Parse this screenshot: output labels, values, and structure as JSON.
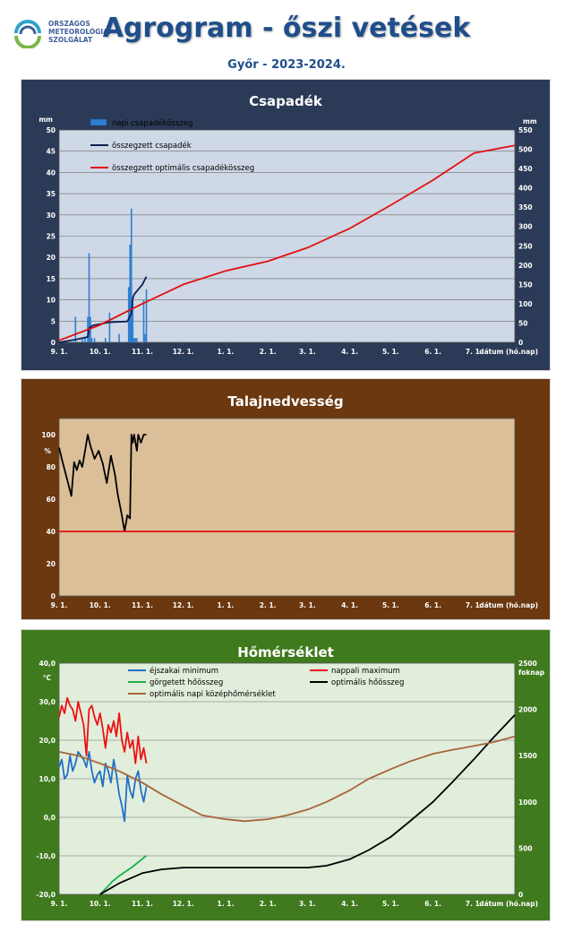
{
  "header": {
    "logo_lines": [
      "ORSZÁGOS",
      "METEOROLÓGIAI",
      "SZOLGÁLAT"
    ],
    "title": "Agrogram - őszi vetések",
    "subtitle": "Győr - 2023-2024."
  },
  "colors": {
    "precip_panel": "#2b3a56",
    "soil_panel": "#6b3810",
    "temp_panel": "#3f7a1e",
    "precip_plot": "#cfd8e6",
    "soil_plot": "#dbbf99",
    "temp_plot": "#e1eedb"
  },
  "x_axis": {
    "tick_labels": [
      "9. 1.",
      "10. 1.",
      "11. 1.",
      "12. 1.",
      "1. 1.",
      "2. 1.",
      "3. 1.",
      "4. 1.",
      "5. 1.",
      "6. 1.",
      "7. 1."
    ],
    "label": "dátum (hó.nap)"
  },
  "chart_data": [
    {
      "type": "bar",
      "title": "Csapadék",
      "x_domain": [
        "09-01",
        "07-31"
      ],
      "y_left": {
        "unit": "mm",
        "range": [
          0,
          50
        ],
        "ticks": [
          0,
          5,
          10,
          15,
          20,
          25,
          30,
          35,
          40,
          45,
          50
        ]
      },
      "y_right": {
        "unit": "mm",
        "range": [
          0,
          550
        ],
        "ticks": [
          0,
          50,
          100,
          150,
          200,
          250,
          300,
          350,
          400,
          450,
          500,
          550
        ]
      },
      "legend": [
        "napi csapadékösszeg",
        "összegzett csapadék",
        "összegzett optimális  csapadékösszeg"
      ],
      "series": [
        {
          "name": "napi csapadékösszeg",
          "axis": "left",
          "color": "#2f7fd0",
          "x": [
            "09-13",
            "09-18",
            "09-20",
            "09-22",
            "09-23",
            "09-24",
            "09-25",
            "09-27",
            "10-05",
            "10-08",
            "10-15",
            "10-22",
            "10-23",
            "10-24",
            "10-25",
            "10-26",
            "10-27",
            "10-28",
            "11-02",
            "11-03",
            "11-04"
          ],
          "values": [
            6,
            1,
            1,
            6,
            21,
            6,
            1,
            1,
            1,
            7,
            2,
            13,
            23,
            31.5,
            9,
            1,
            1,
            1,
            10,
            2,
            12.5
          ]
        },
        {
          "name": "összegzett csapadék",
          "axis": "right",
          "color": "#0d1f55",
          "x": [
            "09-01",
            "09-13",
            "09-22",
            "09-23",
            "09-26",
            "10-08",
            "10-21",
            "10-24",
            "10-25",
            "10-26",
            "11-01",
            "11-04"
          ],
          "values": [
            0,
            7,
            14,
            37,
            44,
            52,
            54,
            75,
            114,
            124,
            150,
            170
          ]
        },
        {
          "name": "összegzett optimális  csapadékösszeg",
          "axis": "right",
          "color": "#e01010",
          "x": [
            "09-01",
            "10-01",
            "11-01",
            "12-01",
            "01-01",
            "02-01",
            "03-01",
            "04-01",
            "05-01",
            "06-01",
            "07-01",
            "07-31"
          ],
          "values": [
            5,
            45,
            100,
            150,
            185,
            210,
            245,
            295,
            355,
            420,
            490,
            510
          ]
        }
      ]
    },
    {
      "type": "line",
      "title": "Talajnedvesség",
      "x_domain": [
        "09-01",
        "07-31"
      ],
      "y_left": {
        "unit": "%",
        "range": [
          0,
          110
        ],
        "ticks": [
          0,
          20,
          40,
          60,
          80,
          100
        ]
      },
      "series": [
        {
          "name": "",
          "color": "#000000",
          "x": [
            "09-01",
            "09-03",
            "09-07",
            "09-10",
            "09-12",
            "09-14",
            "09-16",
            "09-18",
            "09-20",
            "09-22",
            "09-24",
            "09-27",
            "09-30",
            "10-03",
            "10-06",
            "10-09",
            "10-12",
            "10-14",
            "10-17",
            "10-19",
            "10-20",
            "10-21",
            "10-23",
            "10-24",
            "10-25",
            "10-26",
            "10-27",
            "10-28",
            "10-29",
            "10-31",
            "11-02",
            "11-04"
          ],
          "values": [
            92,
            85,
            72,
            62,
            83,
            78,
            84,
            80,
            90,
            100,
            93,
            85,
            90,
            82,
            70,
            87,
            75,
            63,
            50,
            40,
            45,
            50,
            48,
            100,
            95,
            100,
            95,
            90,
            100,
            95,
            100,
            100
          ]
        },
        {
          "name": "",
          "color": "#e01010",
          "x": [
            "09-01",
            "07-31"
          ],
          "values": [
            40,
            40
          ]
        }
      ]
    },
    {
      "type": "line",
      "title": "Hőmérséklet",
      "x_domain": [
        "09-01",
        "07-31"
      ],
      "y_left": {
        "unit": "°C",
        "range": [
          -20,
          40
        ],
        "ticks": [
          "-20,0",
          "-10,0",
          "0,0",
          "10,0",
          "20,0",
          "30,0",
          "40,0"
        ]
      },
      "y_right": {
        "unit": "foknap",
        "range": [
          0,
          2500
        ],
        "ticks": [
          0,
          500,
          1000,
          1500,
          2000,
          2500
        ]
      },
      "legend": [
        "éjszakai minimum",
        "nappali maximum",
        "görgetett hőösszeg",
        "optimális hőösszeg",
        "optimális napi középhőmérséklet"
      ],
      "series": [
        {
          "name": "éjszakai minimum",
          "axis": "left",
          "color": "#2170c8",
          "x": [
            "09-01",
            "09-03",
            "09-05",
            "09-07",
            "09-09",
            "09-11",
            "09-13",
            "09-15",
            "09-17",
            "09-19",
            "09-21",
            "09-23",
            "09-25",
            "09-27",
            "09-29",
            "10-01",
            "10-03",
            "10-05",
            "10-07",
            "10-09",
            "10-11",
            "10-13",
            "10-15",
            "10-17",
            "10-19",
            "10-21",
            "10-23",
            "10-25",
            "10-27",
            "10-29",
            "10-31",
            "11-02",
            "11-04"
          ],
          "values": [
            13,
            15,
            10,
            11,
            16,
            12,
            14,
            17,
            16,
            15,
            13,
            17,
            12,
            9,
            11,
            12,
            8,
            14,
            12,
            9,
            15,
            11,
            6,
            3,
            -1,
            11,
            7,
            5,
            10,
            12,
            7,
            4,
            8
          ]
        },
        {
          "name": "nappali maximum",
          "axis": "left",
          "color": "#f01010",
          "x": [
            "09-01",
            "09-03",
            "09-05",
            "09-07",
            "09-09",
            "09-11",
            "09-13",
            "09-15",
            "09-17",
            "09-19",
            "09-21",
            "09-23",
            "09-25",
            "09-27",
            "09-29",
            "10-01",
            "10-03",
            "10-05",
            "10-07",
            "10-09",
            "10-11",
            "10-13",
            "10-15",
            "10-17",
            "10-19",
            "10-21",
            "10-23",
            "10-25",
            "10-27",
            "10-29",
            "10-31",
            "11-02",
            "11-04"
          ],
          "values": [
            26,
            29,
            27,
            31,
            29,
            28,
            25,
            30,
            27,
            24,
            16,
            28,
            29,
            26,
            24,
            27,
            23,
            18,
            24,
            22,
            25,
            21,
            27,
            20,
            17,
            22,
            18,
            20,
            14,
            21,
            15,
            18,
            14
          ]
        },
        {
          "name": "görgetett hőösszeg",
          "axis": "right",
          "color": "#1fae4a",
          "x": [
            "10-01",
            "10-05",
            "10-10",
            "10-15",
            "10-20",
            "10-25",
            "10-30",
            "11-04"
          ],
          "values": [
            0,
            60,
            140,
            200,
            250,
            300,
            360,
            420
          ]
        },
        {
          "name": "optimális hőösszeg",
          "axis": "right",
          "color": "#000000",
          "x": [
            "10-01",
            "10-15",
            "11-01",
            "11-15",
            "12-01",
            "12-15",
            "01-01",
            "02-01",
            "03-01",
            "03-15",
            "04-01",
            "04-15",
            "05-01",
            "05-15",
            "06-01",
            "06-15",
            "07-01",
            "07-15",
            "07-31"
          ],
          "values": [
            0,
            120,
            230,
            270,
            290,
            290,
            290,
            290,
            290,
            310,
            380,
            480,
            620,
            790,
            1000,
            1210,
            1460,
            1690,
            1940
          ]
        },
        {
          "name": "optimális napi középhőmérséklet",
          "axis": "left",
          "color": "#a8643a",
          "x": [
            "09-01",
            "09-15",
            "10-01",
            "10-15",
            "11-01",
            "11-15",
            "12-01",
            "12-15",
            "01-01",
            "01-15",
            "02-01",
            "02-15",
            "03-01",
            "03-15",
            "04-01",
            "04-15",
            "05-01",
            "05-15",
            "06-01",
            "06-15",
            "07-01",
            "07-15",
            "07-31"
          ],
          "values": [
            17,
            16,
            14,
            12,
            9,
            6,
            3,
            0.5,
            -0.5,
            -1,
            -0.5,
            0.5,
            2,
            4,
            7,
            10,
            12.5,
            14.5,
            16.5,
            17.5,
            18.5,
            19.5,
            21
          ]
        }
      ]
    }
  ]
}
